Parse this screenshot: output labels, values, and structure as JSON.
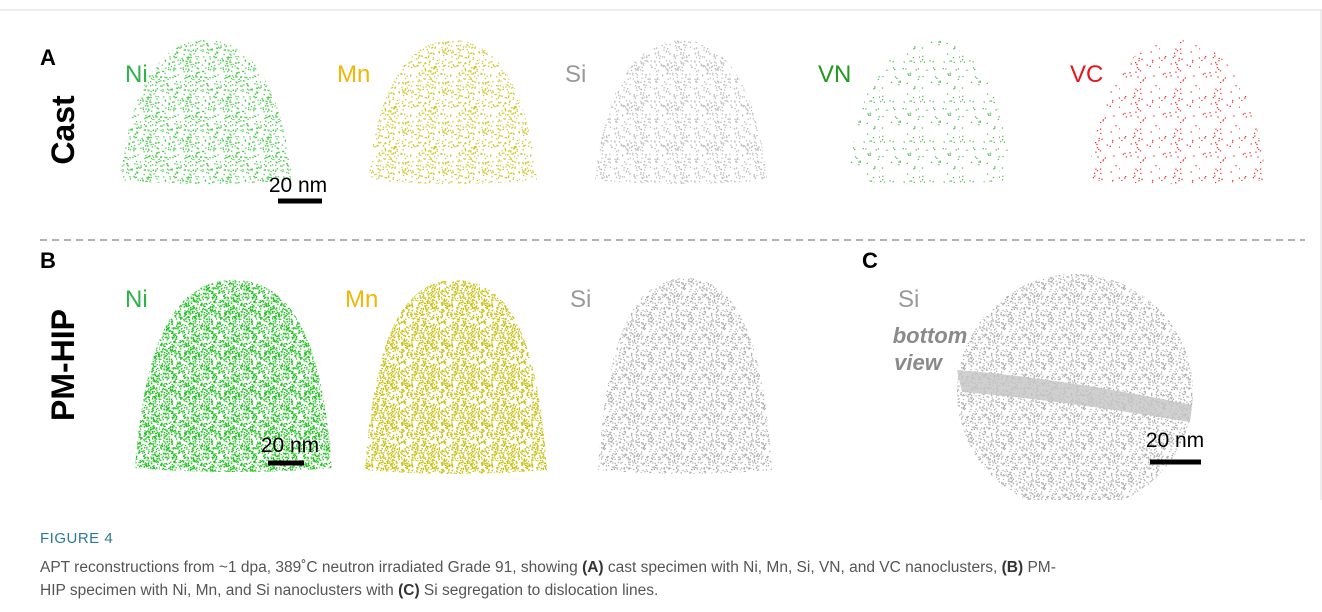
{
  "figure": {
    "panels": [
      {
        "label": "A",
        "row_label": "Cast",
        "elements": [
          "Ni",
          "Mn",
          "Si",
          "VN",
          "VC"
        ],
        "scale_bar": "20 nm"
      },
      {
        "label": "B",
        "row_label": "PM-HIP",
        "elements": [
          "Ni",
          "Mn",
          "Si"
        ],
        "scale_bar": "20 nm"
      },
      {
        "label": "C",
        "element": "Si",
        "view": [
          "bottom",
          "view"
        ],
        "scale_bar": "20 nm"
      }
    ]
  },
  "caption": {
    "label": "FIGURE 4",
    "segments": [
      "APT reconstructions from ~1 dpa, 389˚C neutron irradiated Grade 91, showing ",
      "(A)",
      " cast specimen with Ni, Mn, Si, VN, and VC nanoclusters, ",
      "(B)",
      " PM-",
      "HIP specimen with Ni, Mn, and Si nanoclusters with ",
      "(C)",
      " Si segregation to dislocation lines."
    ]
  }
}
